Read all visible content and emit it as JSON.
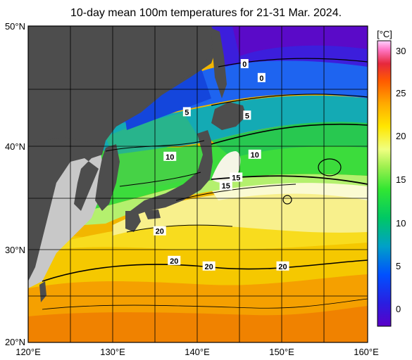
{
  "title": "10-day mean 100m temperatures for 21-31 Mar. 2024.",
  "map": {
    "lat_labels": [
      "50°N",
      "40°N",
      "30°N",
      "20°N"
    ],
    "lon_labels": [
      "120°E",
      "130°E",
      "140°E",
      "150°E",
      "160°E"
    ],
    "contour_labels": [
      {
        "text": "0",
        "lon": 145.5,
        "lat": 47.0
      },
      {
        "text": "0",
        "lon": 147.5,
        "lat": 45.9
      },
      {
        "text": "5",
        "lon": 138.7,
        "lat": 43.0
      },
      {
        "text": "5",
        "lon": 145.8,
        "lat": 42.7
      },
      {
        "text": "10",
        "lon": 136.7,
        "lat": 39.0
      },
      {
        "text": "10",
        "lon": 146.7,
        "lat": 39.2
      },
      {
        "text": "15",
        "lon": 144.5,
        "lat": 37.0
      },
      {
        "text": "15",
        "lon": 143.3,
        "lat": 36.2
      },
      {
        "text": "20",
        "lon": 135.5,
        "lat": 31.8
      },
      {
        "text": "20",
        "lon": 137.2,
        "lat": 28.8
      },
      {
        "text": "20",
        "lon": 141.3,
        "lat": 28.2
      },
      {
        "text": "20",
        "lon": 150.0,
        "lat": 28.2
      }
    ]
  },
  "colorbar": {
    "unit": "[°C]",
    "ticks": [
      "30",
      "25",
      "20",
      "15",
      "10",
      "5",
      "0"
    ]
  },
  "colors": {
    "land": "#4d4d4d",
    "land_light": "#c8c8c8",
    "grid": "#000000"
  }
}
